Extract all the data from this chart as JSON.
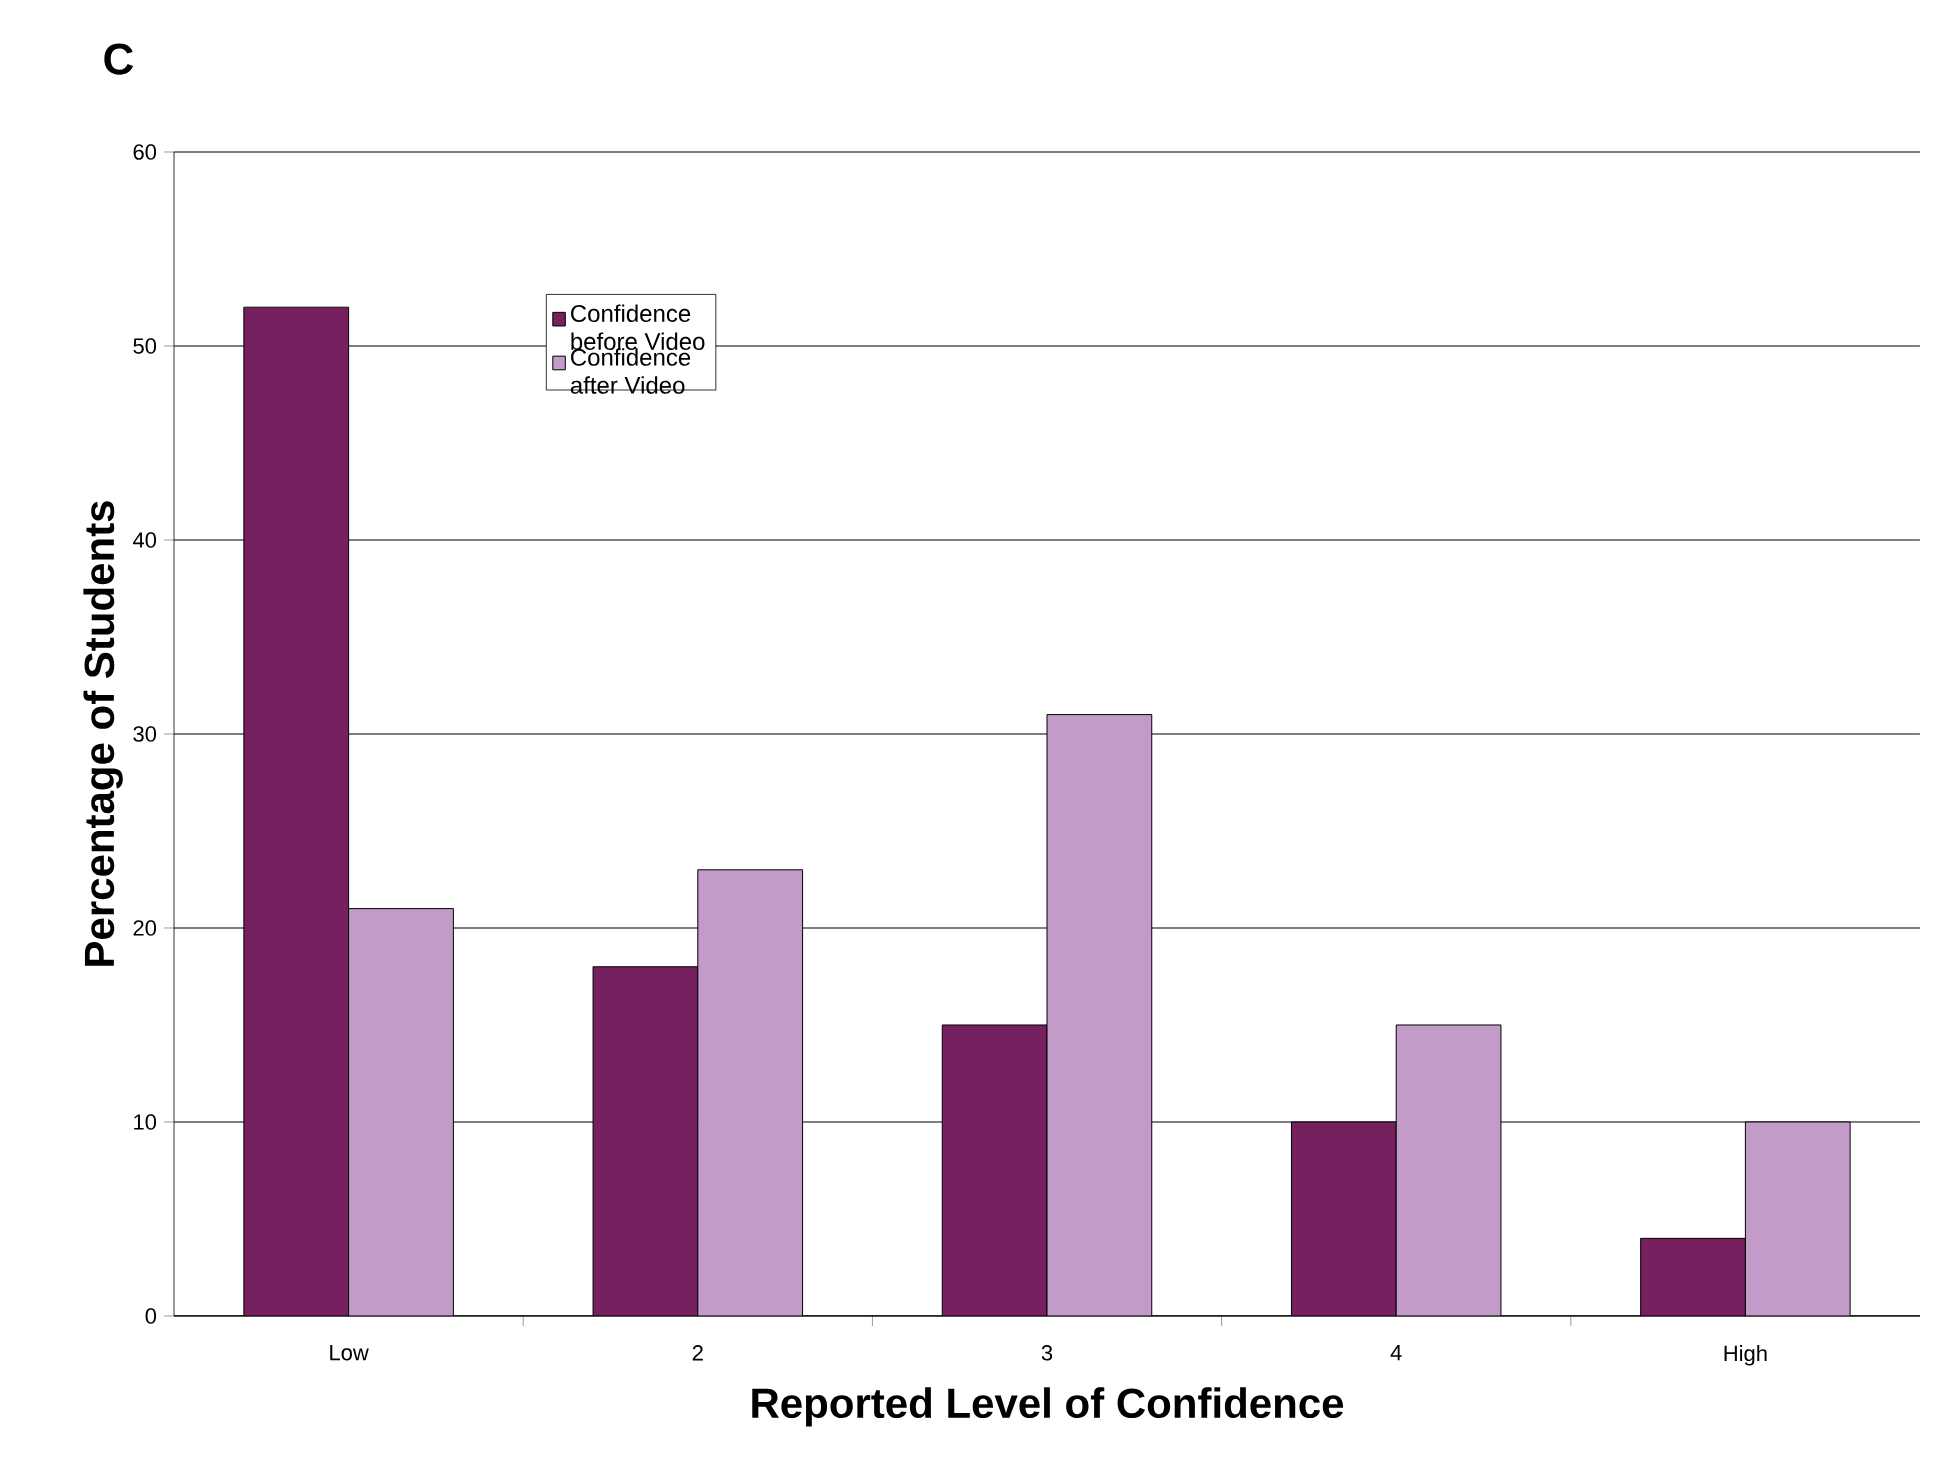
{
  "chart_data": {
    "type": "bar",
    "title": "C",
    "xlabel": "Reported Level of Confidence",
    "ylabel": "Percentage of Students",
    "categories": [
      "Low",
      "2",
      "3",
      "4",
      "High"
    ],
    "series": [
      {
        "name": "Confidence before Video",
        "color": "#772060",
        "values": [
          52,
          18,
          15,
          10,
          4
        ]
      },
      {
        "name": "Confidence after Video",
        "color": "#c39bc9",
        "values": [
          21,
          23,
          31,
          15,
          10
        ]
      }
    ],
    "ylim": [
      0,
      60
    ],
    "yticks": [
      0,
      10,
      20,
      30,
      40,
      50,
      60
    ],
    "grid": "y",
    "legend": "top left"
  }
}
